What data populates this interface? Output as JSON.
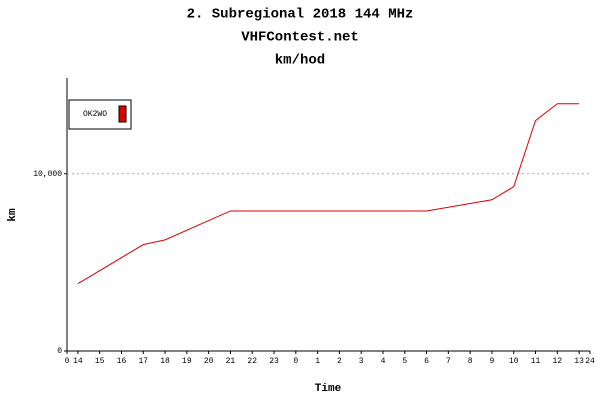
{
  "chart_data": {
    "type": "line",
    "title": "2. Subregional 2018 144 MHz",
    "subtitle": "VHFContest.net",
    "unit_label": "km/hod",
    "y_label": "km",
    "x_label": "Time",
    "x": [
      0.5,
      3.5,
      4.5,
      7.5,
      16.5,
      19.5,
      20.5,
      21.5,
      22.5,
      23.5
    ],
    "series": [
      {
        "name": "OK2WO",
        "color": "#dd0000",
        "values": [
          3800,
          6000,
          6270,
          7900,
          7900,
          8530,
          9270,
          13000,
          13950,
          13950
        ]
      }
    ],
    "xlim": [
      0,
      24
    ],
    "xticks": [
      0,
      {
        "value": 0.5,
        "label": "14"
      },
      {
        "value": 1.5,
        "label": "15"
      },
      {
        "value": 2.5,
        "label": "16"
      },
      {
        "value": 3.5,
        "label": "17"
      },
      {
        "value": 4.5,
        "label": "18"
      },
      {
        "value": 5.5,
        "label": "19"
      },
      {
        "value": 6.5,
        "label": "20"
      },
      {
        "value": 7.5,
        "label": "21"
      },
      {
        "value": 8.5,
        "label": "22"
      },
      {
        "value": 9.5,
        "label": "23"
      },
      {
        "value": 10.5,
        "label": "0"
      },
      {
        "value": 11.5,
        "label": "1"
      },
      {
        "value": 12.5,
        "label": "2"
      },
      {
        "value": 13.5,
        "label": "3"
      },
      {
        "value": 14.5,
        "label": "4"
      },
      {
        "value": 15.5,
        "label": "5"
      },
      {
        "value": 16.5,
        "label": "6"
      },
      {
        "value": 17.5,
        "label": "7"
      },
      {
        "value": 18.5,
        "label": "8"
      },
      {
        "value": 19.5,
        "label": "9"
      },
      {
        "value": 20.5,
        "label": "10"
      },
      {
        "value": 21.5,
        "label": "11"
      },
      {
        "value": 22.5,
        "label": "12"
      },
      {
        "value": 23.5,
        "label": "13"
      },
      24
    ],
    "ylim": [
      0,
      15400
    ],
    "yticks": [
      0,
      {
        "value": 10000,
        "label": "10,000"
      }
    ],
    "grid": true,
    "legend": "upper left"
  }
}
